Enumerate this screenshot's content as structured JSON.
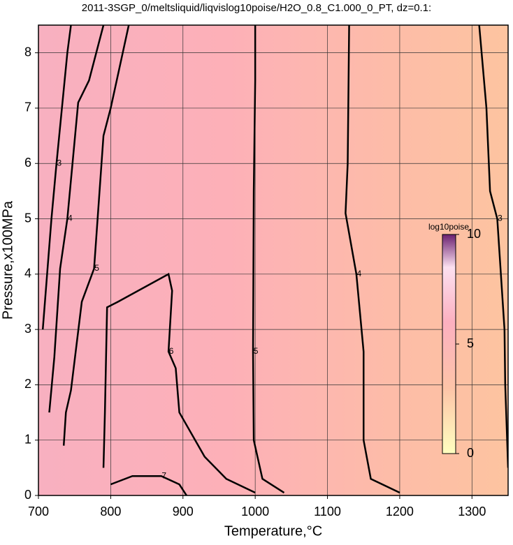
{
  "chart_data": {
    "type": "contour",
    "title": "2011-3SGP_0/meltsliquid/liqvislog10poise/H2O_0.8_C1.000_0_PT, dz=0.1:",
    "x_label": "Temperature,°C",
    "y_label": "Pressure,x100MPa",
    "xlim": [
      700,
      1350
    ],
    "ylim": [
      0,
      8.5
    ],
    "xticks": [
      700,
      800,
      900,
      1000,
      1100,
      1200,
      1300
    ],
    "yticks": [
      0,
      1,
      2,
      3,
      4,
      5,
      6,
      7,
      8
    ],
    "grid": true,
    "colorbar_label": "log10poise",
    "clim": [
      0,
      10
    ],
    "cticks": [
      0,
      5,
      10
    ],
    "contours": [
      {
        "level": 5,
        "x": [
          1040,
          1010,
          998,
          997,
          998,
          1000,
          1000
        ],
        "y": [
          0.05,
          0.3,
          1,
          2.6,
          5.5,
          7.5,
          8.5
        ]
      },
      {
        "level": 4,
        "x": [
          1200,
          1160,
          1150,
          1150,
          1140,
          1125,
          1128,
          1130
        ],
        "y": [
          0.05,
          0.3,
          1,
          2.6,
          4,
          5.1,
          6,
          8.5
        ]
      },
      {
        "level": 3,
        "x": [
          1350,
          1346,
          1345,
          1335,
          1325,
          1320,
          1310
        ],
        "y": [
          0.5,
          2,
          3,
          5,
          5.5,
          7,
          8.5
        ]
      },
      {
        "level": 6,
        "x": [
          790,
          792,
          795,
          810,
          880,
          885,
          880,
          890,
          895,
          930,
          960,
          1000
        ],
        "y": [
          0.5,
          1.5,
          3.4,
          3.5,
          4,
          3.7,
          2.6,
          2.3,
          1.5,
          0.7,
          0.3,
          0.05
        ]
      },
      {
        "level": 7,
        "x": [
          800,
          830,
          870,
          895,
          905
        ],
        "y": [
          0.2,
          0.35,
          0.35,
          0.2,
          0
        ]
      },
      {
        "level": 5,
        "x": [
          735,
          738,
          745,
          760,
          777,
          790,
          800,
          825
        ],
        "y": [
          0.9,
          1.5,
          1.9,
          3.5,
          4.1,
          6.5,
          7,
          8.5
        ]
      },
      {
        "level": 4,
        "x": [
          715,
          722,
          730,
          740,
          755,
          770,
          790
        ],
        "y": [
          1.5,
          2.5,
          4.1,
          5,
          7.1,
          7.5,
          8.5
        ]
      },
      {
        "level": 3,
        "x": [
          706,
          712,
          718,
          725,
          740,
          745
        ],
        "y": [
          3,
          4,
          5,
          6,
          8,
          8.5
        ]
      }
    ]
  }
}
